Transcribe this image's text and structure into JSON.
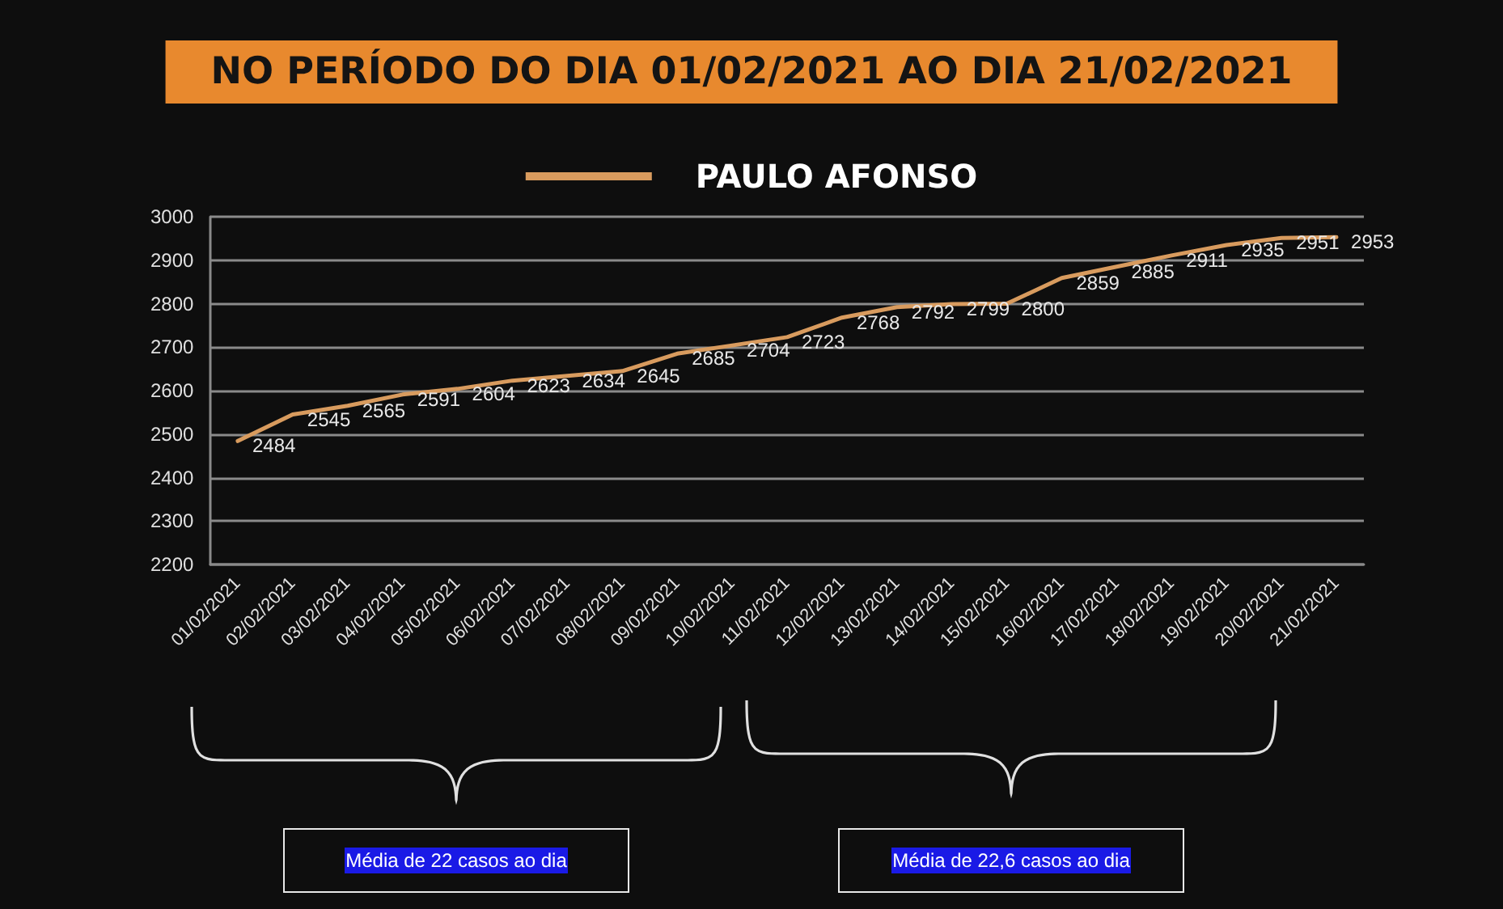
{
  "chart_data": {
    "type": "line",
    "title": "NO PERÍODO DO DIA 01/02/2021 AO DIA 21/02/2021",
    "categories": [
      "01/02/2021",
      "02/02/2021",
      "03/02/2021",
      "04/02/2021",
      "05/02/2021",
      "06/02/2021",
      "07/02/2021",
      "08/02/2021",
      "09/02/2021",
      "10/02/2021",
      "11/02/2021",
      "12/02/2021",
      "13/02/2021",
      "14/02/2021",
      "15/02/2021",
      "16/02/2021",
      "17/02/2021",
      "18/02/2021",
      "19/02/2021",
      "20/02/2021",
      "21/02/2021"
    ],
    "series": [
      {
        "name": "PAULO AFONSO",
        "color": "#d89b5e",
        "values": [
          2484,
          2545,
          2565,
          2591,
          2604,
          2623,
          2634,
          2645,
          2685,
          2704,
          2723,
          2768,
          2792,
          2799,
          2800,
          2859,
          2885,
          2911,
          2935,
          2951,
          2953
        ]
      }
    ],
    "ylim": [
      2200,
      3000
    ],
    "yticks": [
      2200,
      2300,
      2400,
      2500,
      2600,
      2700,
      2800,
      2900,
      3000
    ],
    "grid": "y",
    "legend": "top",
    "data_labels": true,
    "annotations": [
      "Média de 22 casos ao dia",
      "Média de 22,6 casos ao dia"
    ]
  }
}
